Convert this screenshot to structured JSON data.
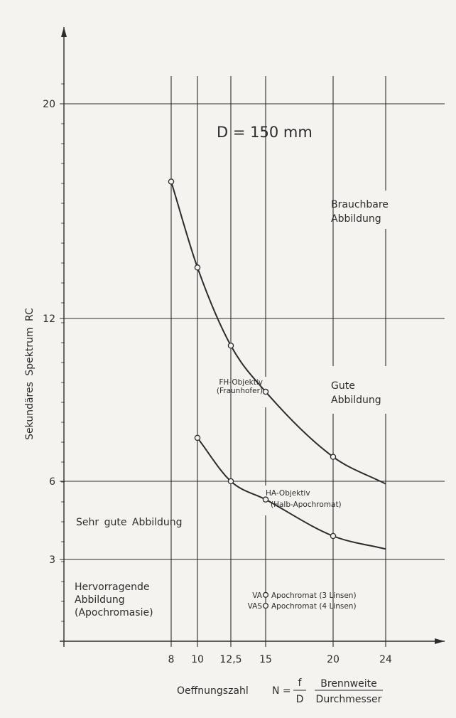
{
  "chart_data": {
    "type": "line",
    "title": "D = 150 mm",
    "xlabel": "Oeffnungszahl",
    "ylabel": "Sekundäres Spektrum RC",
    "formula": {
      "prefix": "N =",
      "num": "f",
      "den": "D",
      "word_num": "Brennweite",
      "word_den": "Durchmesser"
    },
    "x_ticks": [
      {
        "value": 8,
        "label": "8"
      },
      {
        "value": 10,
        "label": "10"
      },
      {
        "value": 12.5,
        "label": "12,5"
      },
      {
        "value": 15,
        "label": "15"
      },
      {
        "value": 20,
        "label": "20"
      },
      {
        "value": 24,
        "label": "24"
      }
    ],
    "y_ticks": [
      {
        "value": 3,
        "label": "3"
      },
      {
        "value": 6,
        "label": "6"
      },
      {
        "value": 12,
        "label": "12"
      },
      {
        "value": 20,
        "label": "20"
      }
    ],
    "series": [
      {
        "name": "FH-Objektiv (Fraunhofer)",
        "name_line1": "FH-Objektiv",
        "name_line2": "(Fraunhofer)",
        "x": [
          8,
          10,
          12.5,
          15,
          20,
          24
        ],
        "y": [
          17.1,
          13.9,
          11.0,
          9.3,
          6.9,
          5.9
        ],
        "markers": [
          true,
          true,
          true,
          true,
          true,
          false
        ]
      },
      {
        "name": "HA-Objektiv (Halb-Apochromat)",
        "name_line1": "HA-Objektiv",
        "name_line2": "(Halb-Apochromat)",
        "x": [
          10,
          12.5,
          15,
          20,
          24
        ],
        "y": [
          7.6,
          6.0,
          5.3,
          3.9,
          3.4
        ],
        "markers": [
          true,
          true,
          true,
          true,
          false
        ]
      }
    ],
    "points": [
      {
        "tag": "VA",
        "label": "Apochromat (3 Linsen)",
        "x": 15,
        "y": 1.7
      },
      {
        "tag": "VAS",
        "label": "Apochromat (4 Linsen)",
        "x": 15,
        "y": 1.3
      }
    ],
    "regions": {
      "r1": [
        "Brauchbare",
        "Abbildung"
      ],
      "r2": [
        "Gute",
        "Abbildung"
      ],
      "r3": [
        "Sehr gute Abbildung"
      ],
      "r4": [
        "Hervorragende",
        "Abbildung",
        "(Apochromasie)"
      ]
    },
    "grid": true
  }
}
